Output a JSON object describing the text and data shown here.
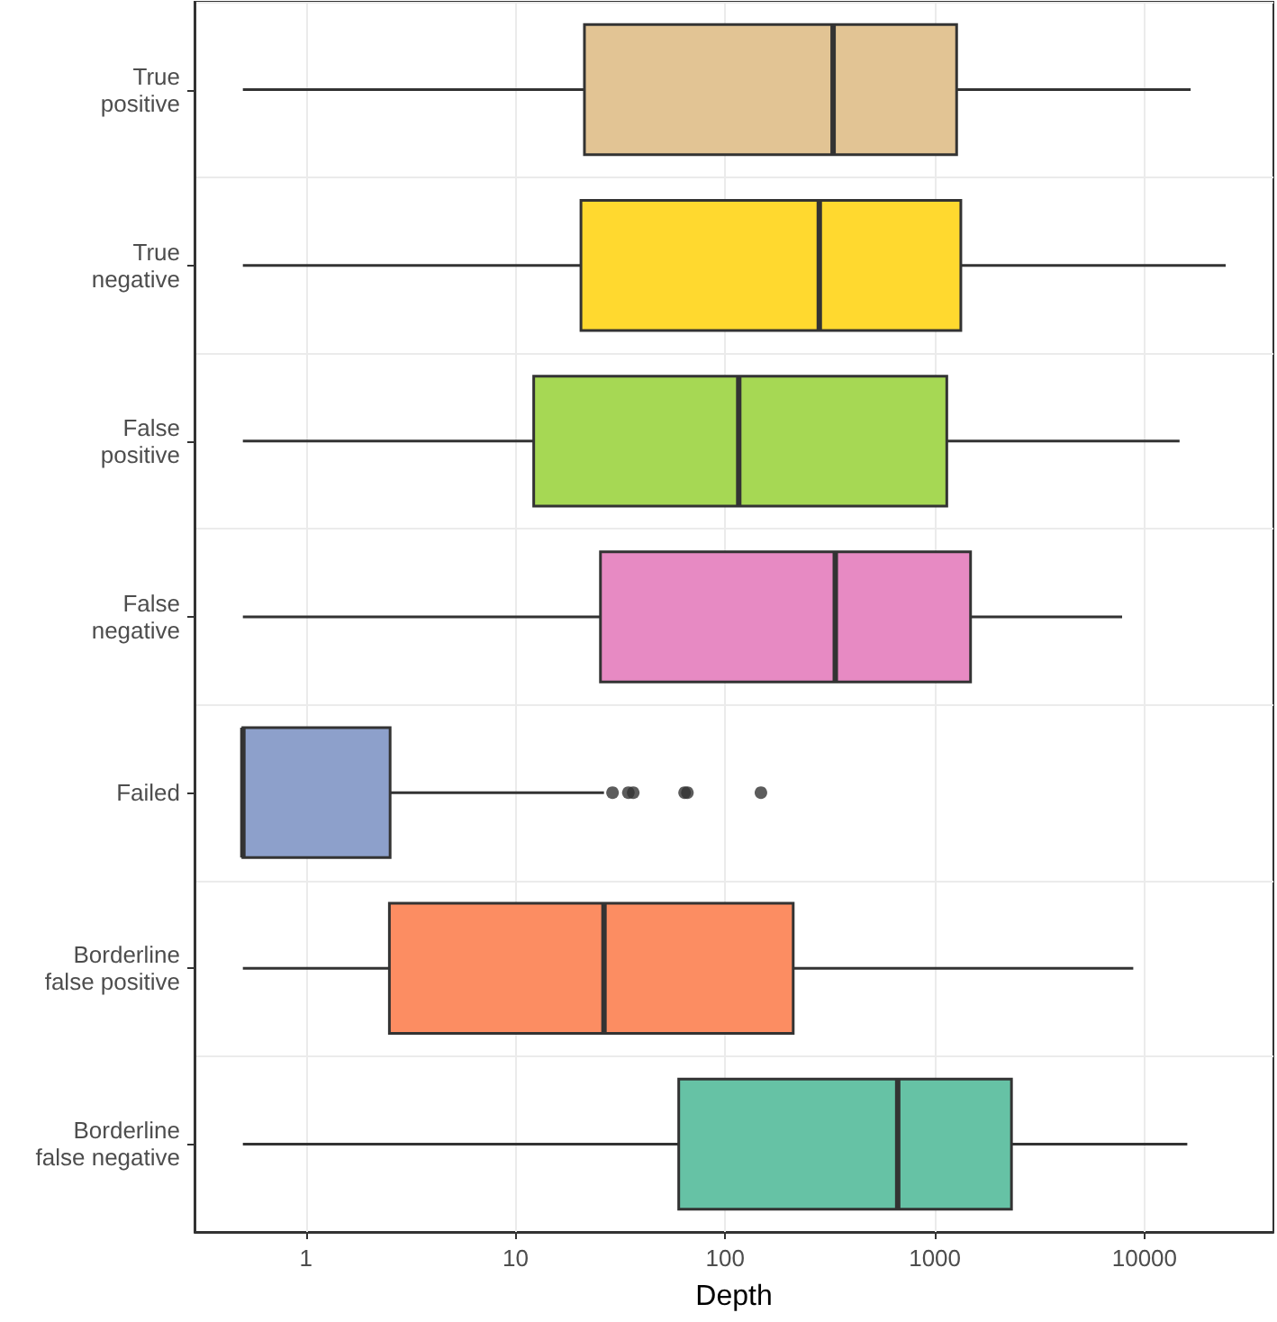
{
  "chart_data": {
    "type": "box",
    "orientation": "horizontal",
    "xlabel": "Depth",
    "log": "x",
    "grid": true,
    "categories": [
      "True\npositive",
      "True\nnegative",
      "False\npositive",
      "False\nnegative",
      "Failed",
      "Borderline\nfalse positive",
      "Borderline\nfalse negative"
    ],
    "colors": [
      "#e2c494",
      "#ffd92f",
      "#a6d854",
      "#e78ac3",
      "#8da0cb",
      "#fc8d62",
      "#66c2a5"
    ],
    "xlim": [
      0.294,
      41200
    ],
    "xticks": [
      1,
      10,
      100,
      1000,
      10000
    ],
    "boxes": [
      {
        "low": 0.5,
        "q1": 21.3,
        "median": 327,
        "q3": 1270,
        "high": 16600
      },
      {
        "low": 0.5,
        "q1": 20.5,
        "median": 281,
        "q3": 1330,
        "high": 24400
      },
      {
        "low": 0.5,
        "q1": 12.2,
        "median": 116,
        "q3": 1140,
        "high": 14700
      },
      {
        "low": 0.5,
        "q1": 25.4,
        "median": 335,
        "q3": 1480,
        "high": 7820
      },
      {
        "low": 0.5,
        "q1": 0.5,
        "median": 0.5,
        "q3": 2.52,
        "high": 26.4,
        "outliers": [
          29,
          34.5,
          36.4,
          64,
          66,
          148
        ]
      },
      {
        "low": 0.5,
        "q1": 2.5,
        "median": 26.4,
        "q3": 211,
        "high": 8840
      },
      {
        "low": 0.5,
        "q1": 60,
        "median": 665,
        "q3": 2320,
        "high": 16000
      }
    ]
  }
}
